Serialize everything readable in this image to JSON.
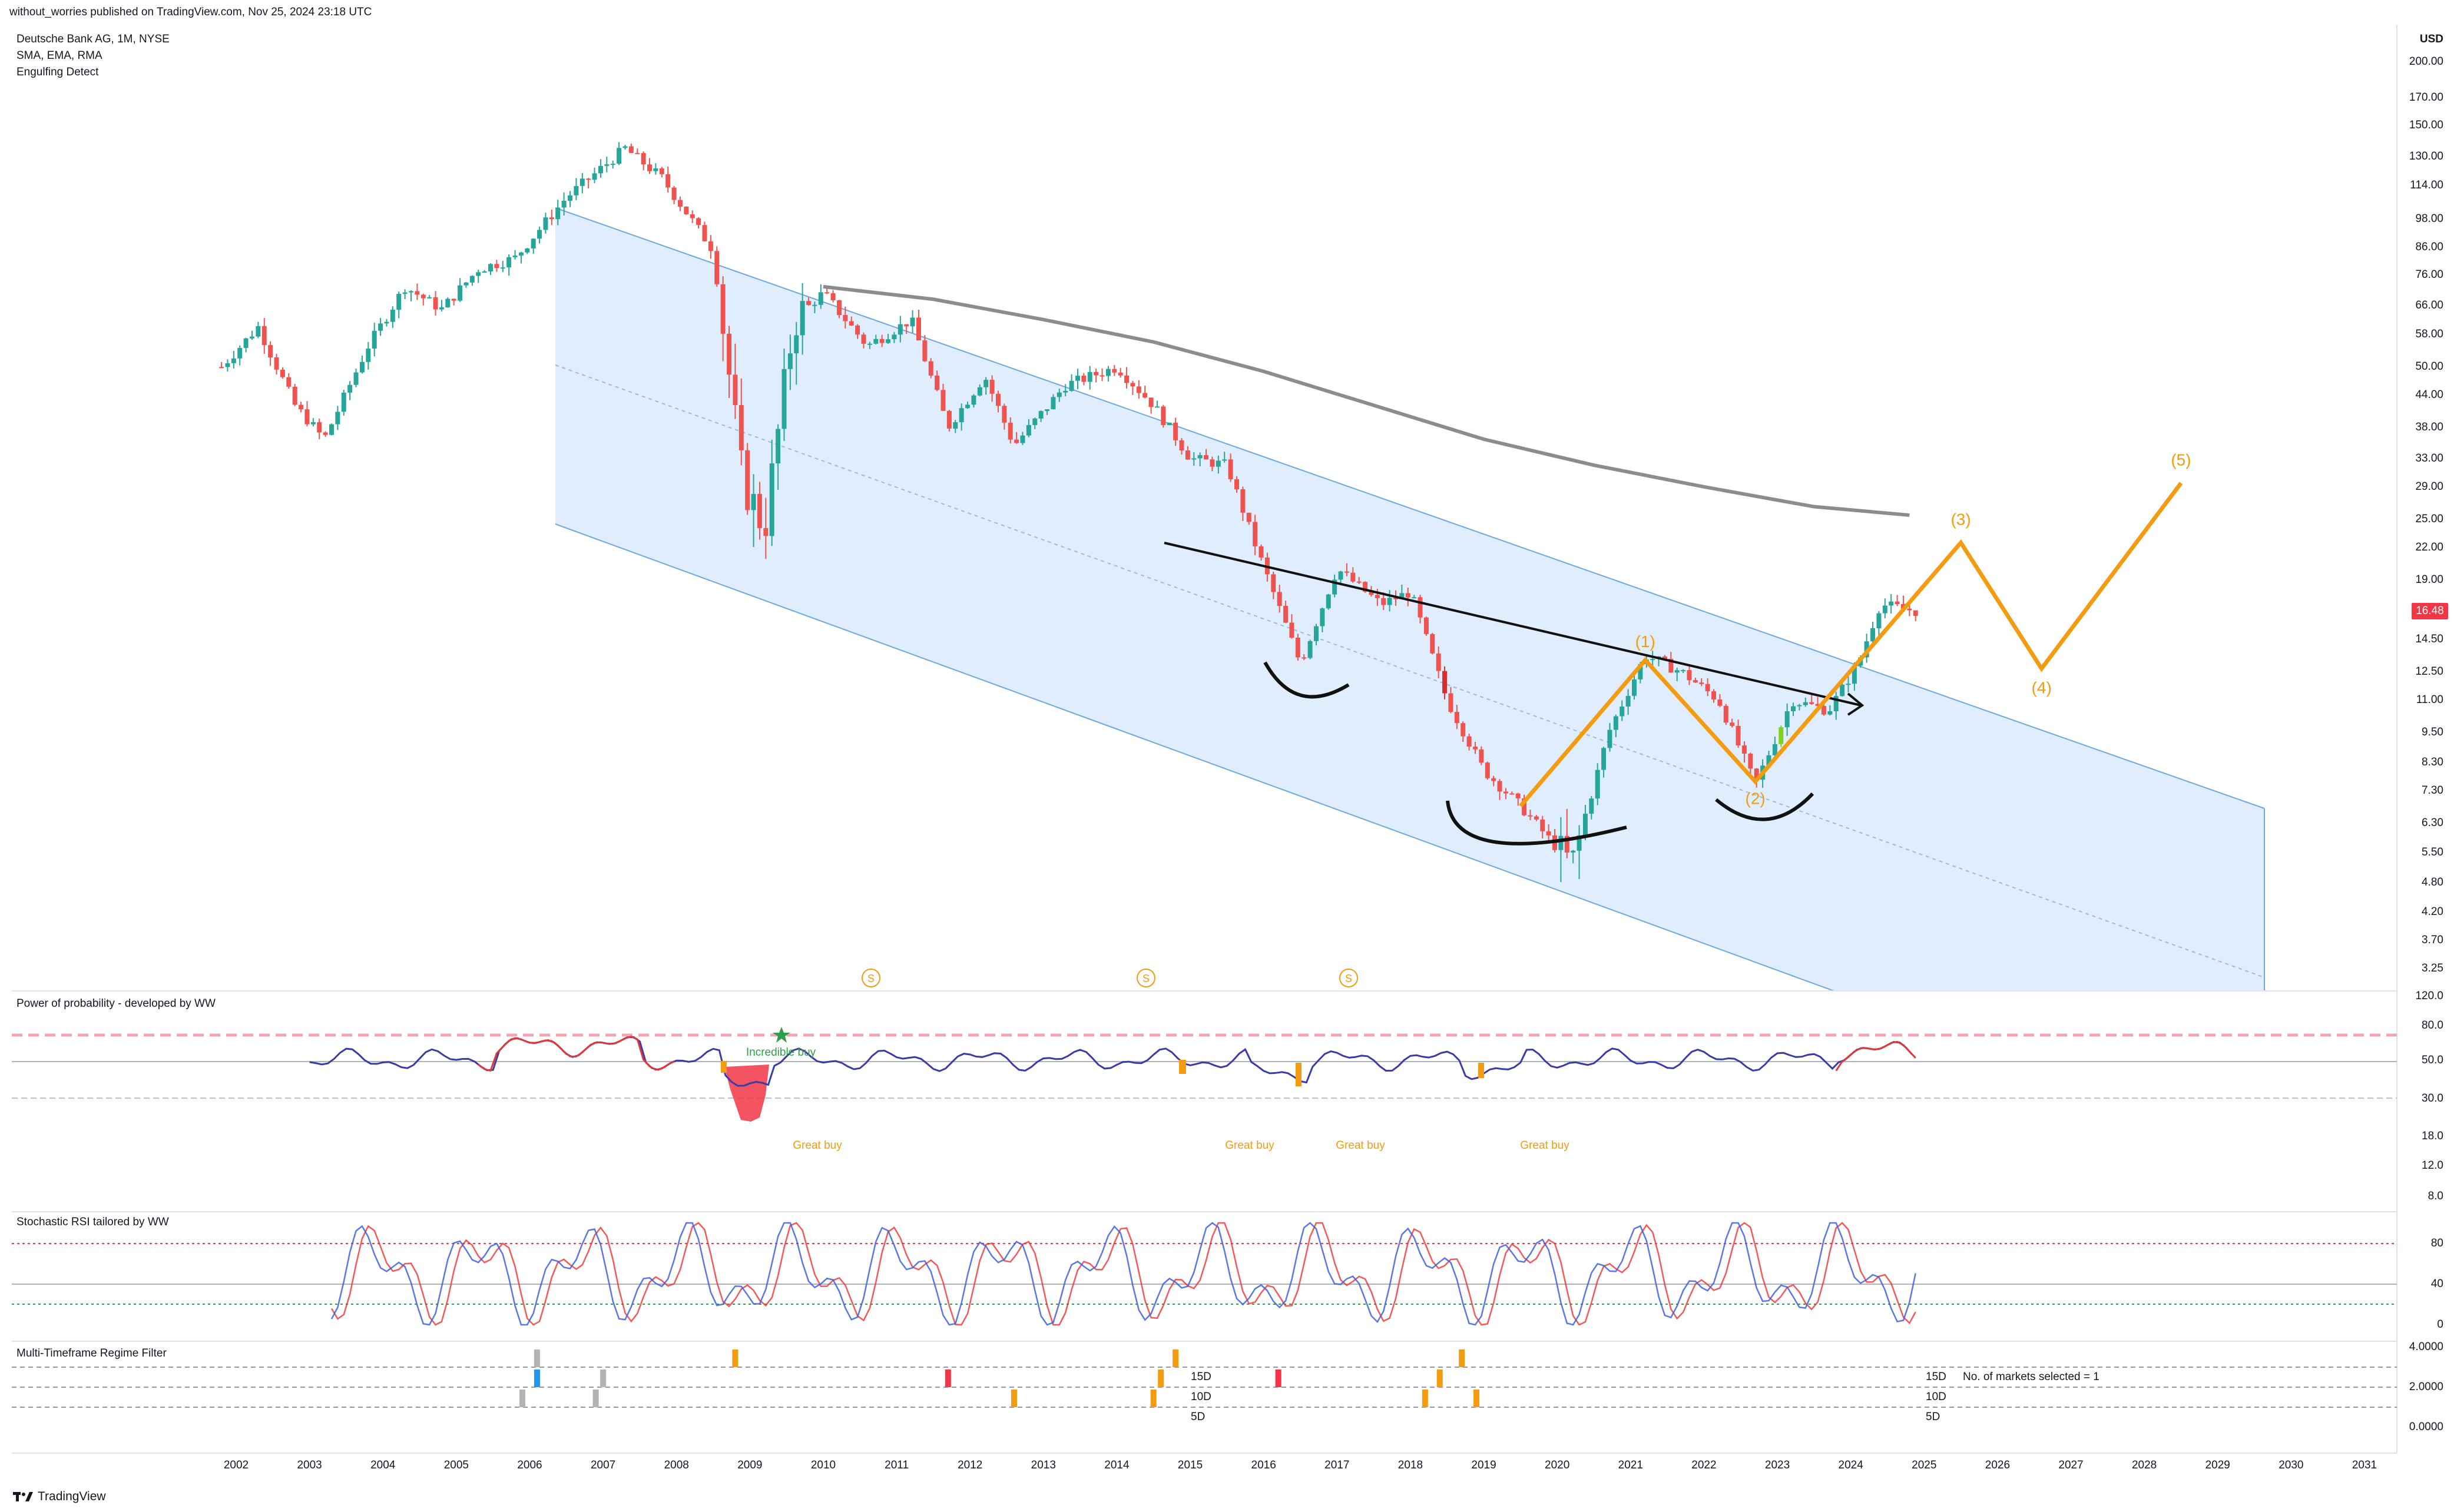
{
  "header": {
    "published_by": "without_worries published on TradingView.com, Nov 25, 2024 23:18 UTC"
  },
  "legend": {
    "symbol": "Deutsche Bank AG, 1M, NYSE",
    "indicator_1": "SMA, EMA, RMA",
    "indicator_2": "Engulfing Detect"
  },
  "currency": "USD",
  "last_price": "16.48",
  "colors": {
    "bull": "#26a69a",
    "bear": "#ef5350",
    "bull_highlight": "#7ed321",
    "bear_highlight": "#d32f2f",
    "channel_fill": "#dbeafb",
    "channel_line": "#6fa8dc",
    "sma": "#8c8c8c",
    "wave": "#f39c12",
    "rsi_blue": "#3c5fe0",
    "rsi_red": "#f0302e"
  },
  "panes": {
    "power": {
      "title": "Power of probability - developed by WW",
      "ticks": [
        "120.0",
        "80.0",
        "50.0",
        "30.0",
        "18.0",
        "12.0",
        "8.0"
      ],
      "labels": {
        "incredible_buy": "Incredible buy",
        "great_buy_1": "Great buy",
        "great_buy_2": "Great buy",
        "great_buy_3": "Great buy",
        "great_buy_4": "Great buy"
      }
    },
    "stoch": {
      "title": "Stochastic RSI tailored by WW",
      "ticks": [
        "80",
        "40",
        "0"
      ]
    },
    "regime": {
      "title": "Multi-Timeframe Regime Filter",
      "ticks": [
        "4.0000",
        "2.0000",
        "0.0000"
      ],
      "row_labels_left": [
        "15D",
        "10D",
        "5D"
      ],
      "row_labels_right": [
        "15D",
        "10D",
        "5D"
      ],
      "markets_note": "No. of markets selected = 1"
    }
  },
  "price_axis": {
    "ticks": [
      "200.00",
      "170.00",
      "150.00",
      "130.00",
      "114.00",
      "98.00",
      "86.00",
      "76.00",
      "66.00",
      "58.00",
      "50.00",
      "44.00",
      "38.00",
      "33.00",
      "29.00",
      "25.00",
      "22.00",
      "19.00",
      "14.50",
      "12.50",
      "11.00",
      "9.50",
      "8.30",
      "7.30",
      "6.30",
      "5.50",
      "4.80",
      "4.20",
      "3.70",
      "3.25"
    ]
  },
  "wave_labels": [
    "(1)",
    "(2)",
    "(3)",
    "(4)",
    "(5)"
  ],
  "dividend_marker": "S",
  "footer": {
    "brand": "TradingView"
  },
  "chart_data": {
    "type": "candlestick",
    "title": "Deutsche Bank AG, 1M, NYSE",
    "y_scale": "log",
    "ylim": [
      3.0,
      230.0
    ],
    "x": [
      "2002",
      "2003",
      "2004",
      "2005",
      "2006",
      "2007",
      "2008",
      "2009",
      "2010",
      "2011",
      "2012",
      "2013",
      "2014",
      "2015",
      "2016",
      "2017",
      "2018",
      "2019",
      "2020",
      "2021",
      "2022",
      "2023",
      "2024",
      "2025",
      "2026",
      "2027",
      "2028",
      "2029",
      "2030",
      "2031"
    ],
    "approx_close_path": [
      {
        "t": 2001.8,
        "v": 50
      },
      {
        "t": 2002.3,
        "v": 60
      },
      {
        "t": 2002.8,
        "v": 42
      },
      {
        "t": 2003.2,
        "v": 36
      },
      {
        "t": 2003.8,
        "v": 55
      },
      {
        "t": 2004.3,
        "v": 72
      },
      {
        "t": 2004.8,
        "v": 65
      },
      {
        "t": 2005.3,
        "v": 78
      },
      {
        "t": 2005.8,
        "v": 82
      },
      {
        "t": 2006.5,
        "v": 108
      },
      {
        "t": 2007.3,
        "v": 135
      },
      {
        "t": 2007.8,
        "v": 118
      },
      {
        "t": 2008.5,
        "v": 85
      },
      {
        "t": 2008.9,
        "v": 30
      },
      {
        "t": 2009.2,
        "v": 24
      },
      {
        "t": 2009.6,
        "v": 62
      },
      {
        "t": 2010.0,
        "v": 70
      },
      {
        "t": 2010.6,
        "v": 55
      },
      {
        "t": 2011.2,
        "v": 62
      },
      {
        "t": 2011.7,
        "v": 38
      },
      {
        "t": 2012.2,
        "v": 48
      },
      {
        "t": 2012.6,
        "v": 35
      },
      {
        "t": 2013.3,
        "v": 46
      },
      {
        "t": 2014.0,
        "v": 50
      },
      {
        "t": 2014.5,
        "v": 42
      },
      {
        "t": 2015.0,
        "v": 33
      },
      {
        "t": 2015.5,
        "v": 32
      },
      {
        "t": 2015.9,
        "v": 22
      },
      {
        "t": 2016.5,
        "v": 13
      },
      {
        "t": 2017.0,
        "v": 20
      },
      {
        "t": 2017.6,
        "v": 17
      },
      {
        "t": 2018.0,
        "v": 18
      },
      {
        "t": 2018.5,
        "v": 11
      },
      {
        "t": 2019.0,
        "v": 8
      },
      {
        "t": 2019.5,
        "v": 6.8
      },
      {
        "t": 2020.2,
        "v": 5.2
      },
      {
        "t": 2020.7,
        "v": 9.5
      },
      {
        "t": 2021.2,
        "v": 13.5
      },
      {
        "t": 2021.7,
        "v": 12.5
      },
      {
        "t": 2022.2,
        "v": 11
      },
      {
        "t": 2022.7,
        "v": 7.5
      },
      {
        "t": 2023.2,
        "v": 11
      },
      {
        "t": 2023.7,
        "v": 10.5
      },
      {
        "t": 2024.1,
        "v": 13
      },
      {
        "t": 2024.4,
        "v": 17
      },
      {
        "t": 2024.9,
        "v": 16.48
      }
    ],
    "sma_path": [
      {
        "t": 2010.0,
        "v": 72
      },
      {
        "t": 2011.5,
        "v": 68
      },
      {
        "t": 2013.0,
        "v": 62
      },
      {
        "t": 2014.5,
        "v": 56
      },
      {
        "t": 2016.0,
        "v": 49
      },
      {
        "t": 2017.5,
        "v": 42
      },
      {
        "t": 2019.0,
        "v": 36
      },
      {
        "t": 2020.5,
        "v": 32
      },
      {
        "t": 2022.0,
        "v": 29
      },
      {
        "t": 2023.5,
        "v": 26.5
      },
      {
        "t": 2024.8,
        "v": 25.5
      }
    ],
    "wave_projection": [
      {
        "label": "",
        "t": 2019.5,
        "v": 6.8
      },
      {
        "label": "(1)",
        "t": 2021.2,
        "v": 13.2
      },
      {
        "label": "(2)",
        "t": 2022.7,
        "v": 7.6
      },
      {
        "label": "(3)",
        "t": 2025.5,
        "v": 22.5
      },
      {
        "label": "(4)",
        "t": 2026.6,
        "v": 12.7
      },
      {
        "label": "(5)",
        "t": 2028.5,
        "v": 29.5
      }
    ]
  }
}
